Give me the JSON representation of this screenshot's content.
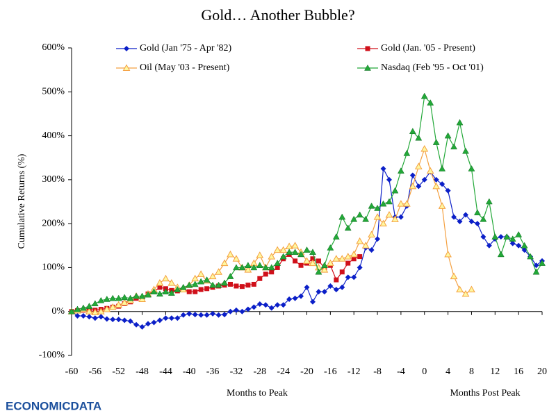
{
  "chart_data": {
    "type": "line",
    "title": "Gold… Another Bubble?",
    "y_label": "Cumulative Returns (%)",
    "x_label": "Months to Peak",
    "x_label_right": "Months Post Peak",
    "logo": "ECONOMICDATA",
    "xlim": [
      -60,
      20
    ],
    "xticks": [
      -60,
      -56,
      -52,
      -48,
      -44,
      -40,
      -36,
      -32,
      -28,
      -24,
      -20,
      -16,
      -12,
      -8,
      -4,
      0,
      4,
      8,
      12,
      16,
      20
    ],
    "ylim": [
      -100,
      600
    ],
    "yticks": [
      {
        "value": -100,
        "label": "-100%"
      },
      {
        "value": 0,
        "label": "0%"
      },
      {
        "value": 100,
        "label": "100%"
      },
      {
        "value": 200,
        "label": "200%"
      },
      {
        "value": 300,
        "label": "300%"
      },
      {
        "value": 400,
        "label": "400%"
      },
      {
        "value": 500,
        "label": "500%"
      },
      {
        "value": 600,
        "label": "600%"
      }
    ],
    "x": [
      -60,
      -59,
      -58,
      -57,
      -56,
      -55,
      -54,
      -53,
      -52,
      -51,
      -50,
      -49,
      -48,
      -47,
      -46,
      -45,
      -44,
      -43,
      -42,
      -41,
      -40,
      -39,
      -38,
      -37,
      -36,
      -35,
      -34,
      -33,
      -32,
      -31,
      -30,
      -29,
      -28,
      -27,
      -26,
      -25,
      -24,
      -23,
      -22,
      -21,
      -20,
      -19,
      -18,
      -17,
      -16,
      -15,
      -14,
      -13,
      -12,
      -11,
      -10,
      -9,
      -8,
      -7,
      -6,
      -5,
      -4,
      -3,
      -2,
      -1,
      0,
      1,
      2,
      3,
      4,
      5,
      6,
      7,
      8,
      9,
      10,
      11,
      12,
      13,
      14,
      15,
      16,
      17,
      18,
      19,
      20
    ],
    "series": [
      {
        "name": "Gold (Jan '75 - Apr '82)",
        "color": "#0b1fc8",
        "marker": "diamond",
        "values": [
          0,
          -10,
          -10,
          -12,
          -15,
          -12,
          -17,
          -18,
          -18,
          -20,
          -22,
          -30,
          -35,
          -28,
          -25,
          -20,
          -15,
          -15,
          -15,
          -8,
          -5,
          -7,
          -8,
          -8,
          -5,
          -8,
          -7,
          0,
          3,
          0,
          5,
          10,
          17,
          15,
          8,
          15,
          15,
          28,
          30,
          35,
          55,
          22,
          45,
          45,
          58,
          50,
          55,
          78,
          78,
          100,
          145,
          140,
          165,
          325,
          300,
          215,
          215,
          240,
          310,
          285,
          300,
          318,
          300,
          290,
          275,
          215,
          205,
          220,
          205,
          200,
          170,
          150,
          165,
          170,
          170,
          155,
          150,
          140,
          125,
          105,
          115
        ]
      },
      {
        "name": "Gold (Jan. '05 - Present)",
        "color": "#d0101a",
        "marker": "square",
        "values": [
          0,
          2,
          3,
          5,
          3,
          5,
          7,
          10,
          12,
          18,
          22,
          30,
          30,
          40,
          45,
          55,
          52,
          48,
          47,
          50,
          45,
          45,
          50,
          52,
          55,
          58,
          60,
          62,
          58,
          57,
          60,
          62,
          75,
          85,
          90,
          100,
          120,
          130,
          115,
          105,
          110,
          120,
          115,
          100,
          105,
          72,
          90,
          110,
          120,
          125,
          null,
          null,
          null,
          null,
          null,
          null,
          null,
          null,
          null,
          null,
          null,
          null,
          null,
          null,
          null,
          null,
          null,
          null,
          null,
          null,
          null,
          null,
          null,
          null,
          null,
          null,
          null,
          null,
          null,
          null,
          null
        ]
      },
      {
        "name": "Oil (May '03 - Present)",
        "color": "#f4a040",
        "marker": "triangle-open",
        "values": [
          0,
          2,
          5,
          0,
          -2,
          0,
          5,
          10,
          15,
          20,
          25,
          35,
          28,
          40,
          50,
          65,
          75,
          65,
          55,
          50,
          60,
          75,
          85,
          70,
          80,
          90,
          110,
          130,
          120,
          100,
          95,
          110,
          128,
          100,
          125,
          140,
          140,
          148,
          150,
          135,
          115,
          110,
          100,
          95,
          110,
          120,
          120,
          125,
          130,
          160,
          150,
          175,
          215,
          200,
          220,
          210,
          245,
          245,
          285,
          330,
          370,
          320,
          285,
          240,
          130,
          80,
          50,
          40,
          50,
          null,
          null,
          null,
          null,
          null,
          null,
          null,
          null,
          null,
          null,
          null,
          null
        ]
      },
      {
        "name": "Nasdaq (Feb '95 - Oct '01)",
        "color": "#22a838",
        "marker": "triangle",
        "values": [
          0,
          5,
          8,
          12,
          18,
          25,
          28,
          30,
          30,
          32,
          30,
          35,
          35,
          38,
          45,
          40,
          45,
          42,
          50,
          55,
          60,
          62,
          68,
          72,
          60,
          60,
          65,
          80,
          100,
          100,
          105,
          100,
          105,
          100,
          100,
          110,
          125,
          135,
          135,
          130,
          140,
          135,
          90,
          105,
          145,
          170,
          215,
          190,
          210,
          220,
          210,
          240,
          235,
          245,
          250,
          275,
          320,
          360,
          410,
          395,
          490,
          475,
          385,
          325,
          400,
          375,
          430,
          365,
          325,
          225,
          210,
          250,
          170,
          130,
          170,
          165,
          175,
          150,
          125,
          90,
          110
        ]
      }
    ]
  }
}
